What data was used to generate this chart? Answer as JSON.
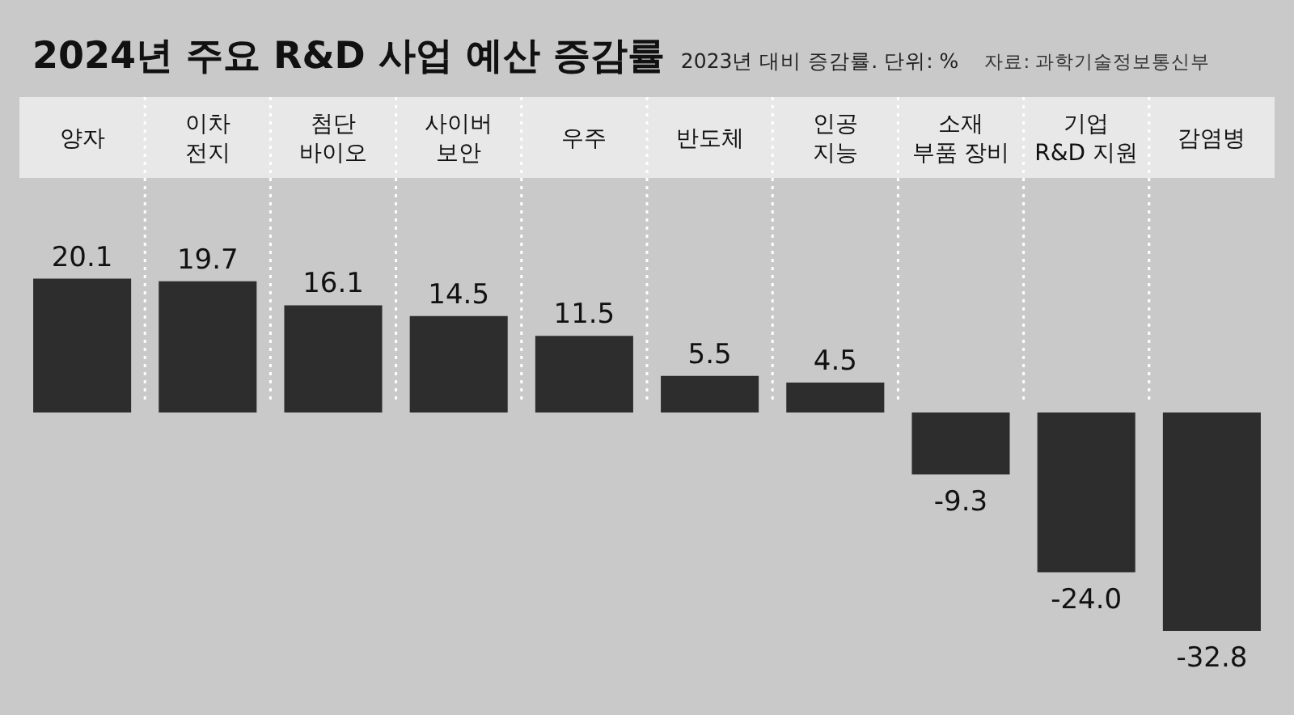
{
  "chart_data": {
    "type": "bar",
    "title": "2024년 주요 R&D 사업 예산 증감률",
    "subtitle": "2023년 대비 증감률. 단위: %",
    "annotations": [
      "자료: 과학기술정보통신부"
    ],
    "categories": [
      "양자",
      "이차\n전지",
      "첨단\n바이오",
      "사이버\n보안",
      "우주",
      "반도체",
      "인공\n지능",
      "소재\n부품 장비",
      "기업\nR&D 지원",
      "감염병"
    ],
    "values": [
      20.1,
      19.7,
      16.1,
      14.5,
      11.5,
      5.5,
      4.5,
      -9.3,
      -24.0,
      -32.8
    ],
    "value_labels": [
      "20.1",
      "19.7",
      "16.1",
      "14.5",
      "11.5",
      "5.5",
      "4.5",
      "-9.3",
      "-24.0",
      "-32.8"
    ],
    "color": "#2d2d2d",
    "grid": "x"
  }
}
